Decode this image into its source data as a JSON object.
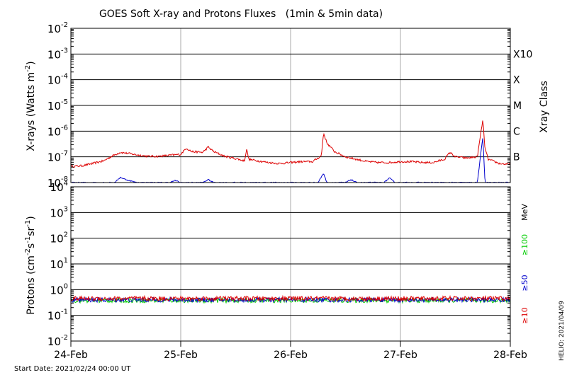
{
  "title": "GOES Soft X-ray and Protons Fluxes   (1min & 5min data)",
  "footer": {
    "start_date": "Start Date: 2021/02/24 00:00 UT",
    "credit": "HELIO: 2021/04/09"
  },
  "chart_data": [
    {
      "type": "line",
      "panel": "xray",
      "ylabel_main": "X-rays (Watts m",
      "ylabel_sup": "-2",
      "ylabel_end": ")",
      "yscale": "log",
      "ylim": [
        1e-08,
        0.01
      ],
      "yticks": [
        {
          "base": "10",
          "exp": "-8"
        },
        {
          "base": "10",
          "exp": "-7"
        },
        {
          "base": "10",
          "exp": "-6"
        },
        {
          "base": "10",
          "exp": "-5"
        },
        {
          "base": "10",
          "exp": "-4"
        },
        {
          "base": "10",
          "exp": "-3"
        },
        {
          "base": "10",
          "exp": "-2"
        }
      ],
      "right_axis_label": "Xray Class",
      "classes": [
        {
          "label": "B",
          "value": 1e-07
        },
        {
          "label": "C",
          "value": 1e-06
        },
        {
          "label": "M",
          "value": 1e-05
        },
        {
          "label": "X",
          "value": 0.0001
        },
        {
          "label": "X10",
          "value": 0.001
        }
      ],
      "series": [
        {
          "color": "#dd0000",
          "points": [
            [
              0.0,
              4.2e-08
            ],
            [
              0.1,
              4.5e-08
            ],
            [
              0.2,
              5.5e-08
            ],
            [
              0.3,
              7e-08
            ],
            [
              0.38,
              1.1e-07
            ],
            [
              0.45,
              1.5e-07
            ],
            [
              0.5,
              1.4e-07
            ],
            [
              0.6,
              1.2e-07
            ],
            [
              0.7,
              1.05e-07
            ],
            [
              0.8,
              1.05e-07
            ],
            [
              0.9,
              1.15e-07
            ],
            [
              1.0,
              1.25e-07
            ],
            [
              1.05,
              2.2e-07
            ],
            [
              1.1,
              1.6e-07
            ],
            [
              1.2,
              1.5e-07
            ],
            [
              1.25,
              2.4e-07
            ],
            [
              1.3,
              1.6e-07
            ],
            [
              1.4,
              1.05e-07
            ],
            [
              1.5,
              8.5e-08
            ],
            [
              1.58,
              7e-08
            ],
            [
              1.6,
              2e-07
            ],
            [
              1.62,
              8e-08
            ],
            [
              1.7,
              7e-08
            ],
            [
              1.8,
              6e-08
            ],
            [
              1.9,
              5.5e-08
            ],
            [
              2.0,
              6e-08
            ],
            [
              2.1,
              6.5e-08
            ],
            [
              2.2,
              6.5e-08
            ],
            [
              2.28,
              1.1e-07
            ],
            [
              2.3,
              8.5e-07
            ],
            [
              2.33,
              3.5e-07
            ],
            [
              2.4,
              1.6e-07
            ],
            [
              2.5,
              1e-07
            ],
            [
              2.6,
              8e-08
            ],
            [
              2.7,
              6.5e-08
            ],
            [
              2.8,
              6e-08
            ],
            [
              2.9,
              6e-08
            ],
            [
              3.0,
              6.5e-08
            ],
            [
              3.1,
              6.5e-08
            ],
            [
              3.2,
              6e-08
            ],
            [
              3.3,
              6e-08
            ],
            [
              3.35,
              7e-08
            ],
            [
              3.4,
              8e-08
            ],
            [
              3.45,
              1.5e-07
            ],
            [
              3.5,
              1e-07
            ],
            [
              3.6,
              9e-08
            ],
            [
              3.7,
              1e-07
            ],
            [
              3.75,
              2.8e-06
            ],
            [
              3.77,
              2e-07
            ],
            [
              3.8,
              8e-08
            ],
            [
              3.9,
              5.5e-08
            ],
            [
              4.0,
              5e-08
            ]
          ]
        },
        {
          "color": "#0000cc",
          "points": [
            [
              0.0,
              1e-08
            ],
            [
              0.4,
              1e-08
            ],
            [
              0.45,
              1.6e-08
            ],
            [
              0.5,
              1.3e-08
            ],
            [
              0.6,
              1e-08
            ],
            [
              0.9,
              1e-08
            ],
            [
              0.95,
              1.2e-08
            ],
            [
              1.0,
              1e-08
            ],
            [
              1.2,
              1e-08
            ],
            [
              1.25,
              1.3e-08
            ],
            [
              1.3,
              1e-08
            ],
            [
              2.25,
              1e-08
            ],
            [
              2.3,
              2.3e-08
            ],
            [
              2.33,
              1e-08
            ],
            [
              2.5,
              1e-08
            ],
            [
              2.55,
              1.3e-08
            ],
            [
              2.6,
              1e-08
            ],
            [
              2.85,
              1e-08
            ],
            [
              2.9,
              1.5e-08
            ],
            [
              2.95,
              1e-08
            ],
            [
              3.7,
              1e-08
            ],
            [
              3.75,
              6e-07
            ],
            [
              3.77,
              1e-08
            ],
            [
              4.0,
              1e-08
            ]
          ]
        }
      ]
    },
    {
      "type": "line",
      "panel": "protons",
      "ylabel_main": "Protons (cm",
      "ylabel_sup1": "-2",
      "ylabel_mid1": "s",
      "ylabel_sup2": "-1",
      "ylabel_mid2": "sr",
      "ylabel_sup3": "-1",
      "ylabel_end": ")",
      "yscale": "log",
      "ylim": [
        0.01,
        10000
      ],
      "yticks": [
        {
          "base": "10",
          "exp": "-2"
        },
        {
          "base": "10",
          "exp": "-1"
        },
        {
          "base": "10",
          "exp": "0"
        },
        {
          "base": "10",
          "exp": "1"
        },
        {
          "base": "10",
          "exp": "2"
        },
        {
          "base": "10",
          "exp": "3"
        },
        {
          "base": "10",
          "exp": "4"
        }
      ],
      "threshold": 10,
      "right_labels": [
        {
          "text": "MeV",
          "color": "#000000"
        },
        {
          "text": "≥100",
          "color": "#00cc00"
        },
        {
          "text": "≥50",
          "color": "#0000cc"
        },
        {
          "text": "≥10",
          "color": "#dd0000"
        }
      ],
      "series": [
        {
          "color": "#dd0000",
          "level": 0.45
        },
        {
          "color": "#0000cc",
          "level": 0.4
        },
        {
          "color": "#00cc00",
          "level": 0.38
        }
      ]
    }
  ],
  "x_axis": {
    "categories": [
      "24-Feb",
      "25-Feb",
      "26-Feb",
      "27-Feb",
      "28-Feb"
    ],
    "xlim": [
      0,
      4
    ]
  }
}
